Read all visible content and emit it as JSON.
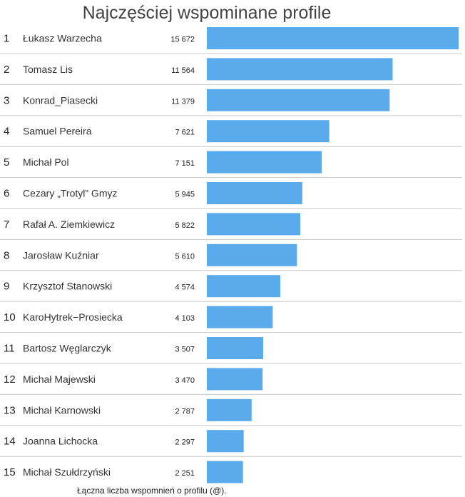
{
  "chart_data": {
    "type": "bar",
    "orientation": "horizontal",
    "title": "Najczęściej wspominane profile",
    "note": "Łączna liczba wspomnień o profilu (@).",
    "bar_color": "#5aabec",
    "divider_color": "#c8c8c8",
    "rows": [
      {
        "rank": "1",
        "name": "Łukasz Warzecha",
        "value": 15672,
        "label": "15 672"
      },
      {
        "rank": "2",
        "name": "Tomasz Lis",
        "value": 11564,
        "label": "11 564"
      },
      {
        "rank": "3",
        "name": "Konrad_Piasecki",
        "value": 11379,
        "label": "11 379"
      },
      {
        "rank": "4",
        "name": "Samuel Pereira",
        "value": 7621,
        "label": "7 621"
      },
      {
        "rank": "5",
        "name": "Michał Pol",
        "value": 7151,
        "label": "7 151"
      },
      {
        "rank": "6",
        "name": "Cezary „Trotyl” Gmyz",
        "value": 5945,
        "label": "5 945"
      },
      {
        "rank": "7",
        "name": "Rafał A. Ziemkiewicz",
        "value": 5822,
        "label": "5 822"
      },
      {
        "rank": "8",
        "name": "Jarosław Kuźniar",
        "value": 5610,
        "label": "5 610"
      },
      {
        "rank": "9",
        "name": "Krzysztof Stanowski",
        "value": 4574,
        "label": "4 574"
      },
      {
        "rank": "10",
        "name": "KaroHytrek−Prosiecka",
        "value": 4103,
        "label": "4 103"
      },
      {
        "rank": "11",
        "name": "Bartosz Węglarczyk",
        "value": 3507,
        "label": "3 507"
      },
      {
        "rank": "12",
        "name": "Michał Majewski",
        "value": 3470,
        "label": "3 470"
      },
      {
        "rank": "13",
        "name": "Michał Karnowski",
        "value": 2787,
        "label": "2 787"
      },
      {
        "rank": "14",
        "name": "Joanna Lichocka",
        "value": 2297,
        "label": "2 297"
      },
      {
        "rank": "15",
        "name": "Michał Szułdrzyński",
        "value": 2251,
        "label": "2 251"
      }
    ]
  }
}
